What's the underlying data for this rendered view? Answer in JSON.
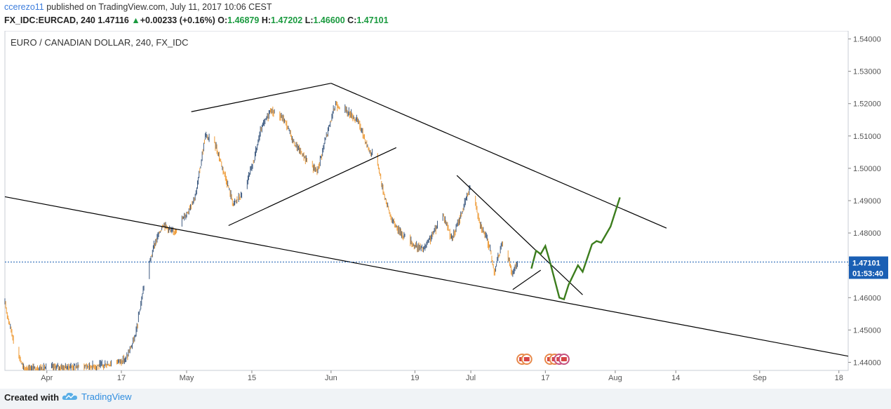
{
  "header": {
    "user": "ccerezo11",
    "published_text": "published on TradingView.com, July 11, 2017 10:06 CEST",
    "symbol": "FX_IDC:EURCAD, 240",
    "last": "1.47116",
    "change_arrow": "▲",
    "change": "+0.00233 (+0.16%)",
    "o_label": "O:",
    "o_value": "1.46879",
    "h_label": "H:",
    "h_value": "1.47202",
    "l_label": "L:",
    "l_value": "1.46600",
    "c_label": "C:",
    "c_value": "1.47101"
  },
  "chart_title": "EURO / CANADIAN DOLLAR, 240, FX_IDC",
  "price_tag": {
    "value": "1.47101",
    "countdown": "01:53:40"
  },
  "footer": {
    "created_with": "Created with",
    "brand": "TradingView"
  },
  "colors": {
    "up": "#3d5a80",
    "down": "#ee9b37",
    "trendline": "#000000",
    "projection": "#3c7d1d",
    "price_tag": "#1a5fb4",
    "grid": "#e0e3eb"
  },
  "chart_data": {
    "type": "candlestick",
    "title": "EURO / CANADIAN DOLLAR, 240, FX_IDC",
    "x_ticks": [
      "Apr",
      "17",
      "May",
      "15",
      "Jun",
      "19",
      "Jul",
      "17",
      "Aug",
      "14",
      "Sep",
      "18"
    ],
    "y_ticks": [
      "1.44000",
      "1.45000",
      "1.46000",
      "1.47000",
      "1.48000",
      "1.49000",
      "1.50000",
      "1.51000",
      "1.52000",
      "1.53000",
      "1.54000"
    ],
    "ylim": [
      1.4375,
      1.5425
    ],
    "xlim": [
      "2017-03-23",
      "2017-09-20"
    ],
    "last_price": 1.47101,
    "price_path": [
      {
        "x": "2017-03-23",
        "y": 1.458
      },
      {
        "x": "2017-03-25",
        "y": 1.446
      },
      {
        "x": "2017-03-27",
        "y": 1.438
      },
      {
        "x": "2017-04-13",
        "y": 1.439
      },
      {
        "x": "2017-04-18",
        "y": 1.441
      },
      {
        "x": "2017-04-20",
        "y": 1.448
      },
      {
        "x": "2017-04-22",
        "y": 1.465
      },
      {
        "x": "2017-04-24",
        "y": 1.476
      },
      {
        "x": "2017-04-26",
        "y": 1.483
      },
      {
        "x": "2017-04-28",
        "y": 1.48
      },
      {
        "x": "2017-05-01",
        "y": 1.486
      },
      {
        "x": "2017-05-03",
        "y": 1.492
      },
      {
        "x": "2017-05-05",
        "y": 1.51
      },
      {
        "x": "2017-05-07",
        "y": 1.508
      },
      {
        "x": "2017-05-09",
        "y": 1.499
      },
      {
        "x": "2017-05-11",
        "y": 1.489
      },
      {
        "x": "2017-05-13",
        "y": 1.492
      },
      {
        "x": "2017-05-15",
        "y": 1.5
      },
      {
        "x": "2017-05-17",
        "y": 1.512
      },
      {
        "x": "2017-05-19",
        "y": 1.518
      },
      {
        "x": "2017-05-22",
        "y": 1.515
      },
      {
        "x": "2017-05-24",
        "y": 1.508
      },
      {
        "x": "2017-05-27",
        "y": 1.502
      },
      {
        "x": "2017-05-29",
        "y": 1.499
      },
      {
        "x": "2017-05-31",
        "y": 1.51
      },
      {
        "x": "2017-06-02",
        "y": 1.52
      },
      {
        "x": "2017-06-05",
        "y": 1.517
      },
      {
        "x": "2017-06-07",
        "y": 1.514
      },
      {
        "x": "2017-06-09",
        "y": 1.506
      },
      {
        "x": "2017-06-11",
        "y": 1.502
      },
      {
        "x": "2017-06-12",
        "y": 1.494
      },
      {
        "x": "2017-06-14",
        "y": 1.484
      },
      {
        "x": "2017-06-16",
        "y": 1.48
      },
      {
        "x": "2017-06-19",
        "y": 1.476
      },
      {
        "x": "2017-06-21",
        "y": 1.475
      },
      {
        "x": "2017-06-23",
        "y": 1.48
      },
      {
        "x": "2017-06-25",
        "y": 1.486
      },
      {
        "x": "2017-06-27",
        "y": 1.478
      },
      {
        "x": "2017-06-29",
        "y": 1.486
      },
      {
        "x": "2017-07-01",
        "y": 1.495
      },
      {
        "x": "2017-07-03",
        "y": 1.483
      },
      {
        "x": "2017-07-05",
        "y": 1.476
      },
      {
        "x": "2017-07-06",
        "y": 1.468
      },
      {
        "x": "2017-07-08",
        "y": 1.478
      },
      {
        "x": "2017-07-10",
        "y": 1.467
      },
      {
        "x": "2017-07-11",
        "y": 1.471
      }
    ],
    "trendlines": [
      {
        "x1": "2017-03-23",
        "y1": 1.4912,
        "x2": "2017-09-20",
        "y2": 1.4419
      },
      {
        "x1": "2017-05-02",
        "y1": 1.5175,
        "x2": "2017-06-01",
        "y2": 1.5263
      },
      {
        "x1": "2017-05-10",
        "y1": 1.4823,
        "x2": "2017-06-15",
        "y2": 1.5064
      },
      {
        "x1": "2017-06-01",
        "y1": 1.5263,
        "x2": "2017-08-12",
        "y2": 1.4815
      },
      {
        "x1": "2017-06-28",
        "y1": 1.4978,
        "x2": "2017-07-25",
        "y2": 1.4609
      },
      {
        "x1": "2017-07-10",
        "y1": 1.4625,
        "x2": "2017-07-16",
        "y2": 1.4685
      }
    ],
    "projection": [
      {
        "x": "2017-07-14",
        "y": 1.469
      },
      {
        "x": "2017-07-15",
        "y": 1.4745
      },
      {
        "x": "2017-07-16",
        "y": 1.4735
      },
      {
        "x": "2017-07-17",
        "y": 1.476
      },
      {
        "x": "2017-07-18",
        "y": 1.471
      },
      {
        "x": "2017-07-20",
        "y": 1.46
      },
      {
        "x": "2017-07-21",
        "y": 1.4595
      },
      {
        "x": "2017-07-22",
        "y": 1.464
      },
      {
        "x": "2017-07-24",
        "y": 1.47
      },
      {
        "x": "2017-07-25",
        "y": 1.468
      },
      {
        "x": "2017-07-27",
        "y": 1.4765
      },
      {
        "x": "2017-07-28",
        "y": 1.4775
      },
      {
        "x": "2017-07-29",
        "y": 1.477
      },
      {
        "x": "2017-07-31",
        "y": 1.482
      },
      {
        "x": "2017-08-02",
        "y": 1.491
      }
    ]
  }
}
